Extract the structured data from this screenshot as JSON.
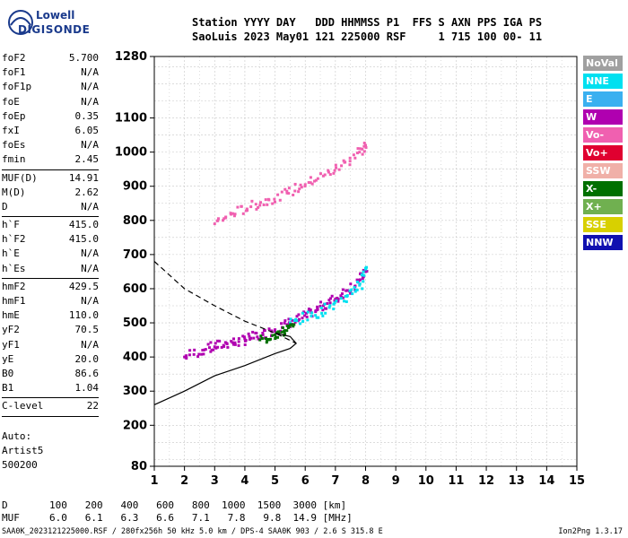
{
  "logo": {
    "line1": "Lowell",
    "line2": "DIGISONDE"
  },
  "header": {
    "line1": "Station YYYY DAY   DDD HHMMSS P1  FFS S AXN PPS IGA PS",
    "line2": "SaoLuis 2023 May01 121 225000 RSF     1 715 100 00- 11"
  },
  "params": {
    "group1": [
      {
        "k": "foF2",
        "v": "5.700"
      },
      {
        "k": "foF1",
        "v": "N/A"
      },
      {
        "k": "foF1p",
        "v": "N/A"
      },
      {
        "k": "foE",
        "v": "N/A"
      },
      {
        "k": "foEp",
        "v": "0.35"
      },
      {
        "k": "fxI",
        "v": "6.05"
      },
      {
        "k": "foEs",
        "v": "N/A"
      },
      {
        "k": "fmin",
        "v": "2.45"
      }
    ],
    "group2": [
      {
        "k": "MUF(D)",
        "v": "14.91"
      },
      {
        "k": "M(D)",
        "v": "2.62"
      },
      {
        "k": "D",
        "v": "N/A"
      }
    ],
    "group3": [
      {
        "k": "h`F",
        "v": "415.0"
      },
      {
        "k": "h`F2",
        "v": "415.0"
      },
      {
        "k": "h`E",
        "v": "N/A"
      },
      {
        "k": "h`Es",
        "v": "N/A"
      }
    ],
    "group4": [
      {
        "k": "hmF2",
        "v": "429.5"
      },
      {
        "k": "hmF1",
        "v": "N/A"
      },
      {
        "k": "hmE",
        "v": "110.0"
      },
      {
        "k": "yF2",
        "v": "70.5"
      },
      {
        "k": "yF1",
        "v": "N/A"
      },
      {
        "k": "yE",
        "v": "20.0"
      },
      {
        "k": "B0",
        "v": "86.6"
      },
      {
        "k": "B1",
        "v": "1.04"
      }
    ],
    "group5": [
      {
        "k": "C-level",
        "v": "22"
      }
    ]
  },
  "auto": {
    "line1": "Auto:",
    "line2": "Artist5",
    "line3": "500200"
  },
  "legend": [
    {
      "label": "NoVal",
      "color": "#a0a0a0"
    },
    {
      "label": "NNE",
      "color": "#00e0f0"
    },
    {
      "label": "E",
      "color": "#3ab0f0"
    },
    {
      "label": "W",
      "color": "#b000b0"
    },
    {
      "label": "Vo-",
      "color": "#f060b0"
    },
    {
      "label": "Vo+",
      "color": "#e00030"
    },
    {
      "label": "SSW",
      "color": "#f0b0a8"
    },
    {
      "label": "X-",
      "color": "#007000"
    },
    {
      "label": "X+",
      "color": "#70b050"
    },
    {
      "label": "SSE",
      "color": "#d8d000"
    },
    {
      "label": "NNW",
      "color": "#1010b0"
    }
  ],
  "bottom": {
    "row1_label": "D",
    "row1": [
      "100",
      "200",
      "400",
      "600",
      "800",
      "1000",
      "1500",
      "3000"
    ],
    "row1_unit": "[km]",
    "row2_label": "MUF",
    "row2": [
      "6.0",
      "6.1",
      "6.3",
      "6.6",
      "7.1",
      "7.8",
      "9.8",
      "14.9"
    ],
    "row2_unit": "[MHz]"
  },
  "footer": {
    "left": "SAA0K_2023121225000.RSF / 280fx256h 50 kHz 5.0 km / DPS-4 SAA0K 903 / 2.6 S 315.8 E",
    "right": "Ion2Png 1.3.17"
  },
  "chart_data": {
    "type": "scatter",
    "xlim": [
      1,
      15
    ],
    "ylim": [
      80,
      1280
    ],
    "x_ticks": [
      1,
      2,
      3,
      4,
      5,
      6,
      7,
      8,
      9,
      10,
      11,
      12,
      13,
      14,
      15
    ],
    "y_ticks": [
      80,
      200,
      300,
      400,
      500,
      600,
      700,
      800,
      900,
      1000,
      1100,
      1280
    ],
    "grid": true,
    "series": [
      {
        "name": "W",
        "color": "#b000b0",
        "x": [
          2.0,
          2.6,
          3.0,
          3.4,
          3.8,
          4.2,
          4.6,
          5.0,
          5.4,
          5.8,
          6.2,
          6.6,
          7.0,
          7.4,
          7.8,
          8.0
        ],
        "y": [
          400,
          420,
          430,
          440,
          445,
          455,
          465,
          480,
          495,
          510,
          530,
          550,
          570,
          595,
          625,
          650
        ]
      },
      {
        "name": "Vo-",
        "color": "#f060b0",
        "x": [
          3.0,
          3.6,
          4.2,
          4.8,
          5.4,
          6.0,
          6.6,
          7.2,
          7.8,
          8.0
        ],
        "y": [
          790,
          820,
          840,
          860,
          880,
          905,
          930,
          960,
          1000,
          1020
        ]
      },
      {
        "name": "NNE",
        "color": "#00e0f0",
        "x": [
          5.5,
          6.2,
          6.8,
          7.4,
          7.8,
          8.0
        ],
        "y": [
          500,
          520,
          545,
          580,
          610,
          660
        ]
      },
      {
        "name": "X-",
        "color": "#007000",
        "x": [
          4.5,
          5.0,
          5.3,
          5.6
        ],
        "y": [
          450,
          465,
          475,
          490
        ]
      }
    ],
    "profile_solid": {
      "x": [
        1.0,
        2.0,
        3.0,
        4.0,
        5.0,
        5.5,
        5.7,
        5.5,
        5.0
      ],
      "y": [
        260,
        300,
        345,
        375,
        410,
        425,
        440,
        460,
        470
      ]
    },
    "profile_dashed": {
      "x": [
        1.0,
        2.0,
        3.0,
        4.0,
        5.0,
        5.7
      ],
      "y": [
        680,
        600,
        550,
        505,
        470,
        440
      ]
    }
  }
}
